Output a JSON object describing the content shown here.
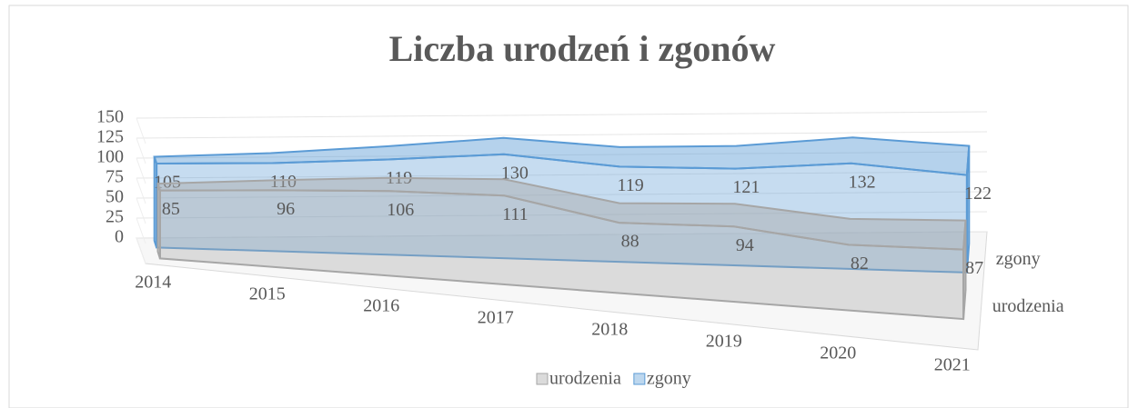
{
  "chart_data": {
    "type": "area3d",
    "title": "Liczba urodzeń i zgonów",
    "categories": [
      "2014",
      "2015",
      "2016",
      "2017",
      "2018",
      "2019",
      "2020",
      "2021"
    ],
    "series": [
      {
        "name": "urodzenia",
        "color": "#a6a6a6",
        "values": [
          85,
          96,
          106,
          111,
          88,
          94,
          82,
          87
        ]
      },
      {
        "name": "zgony",
        "color": "#5b9bd5",
        "values": [
          105,
          110,
          119,
          130,
          119,
          121,
          132,
          122
        ]
      }
    ],
    "ylim": [
      0,
      150
    ],
    "yticks": [
      0,
      25,
      50,
      75,
      100,
      125,
      150
    ],
    "grid": true,
    "legend": "bottom"
  }
}
